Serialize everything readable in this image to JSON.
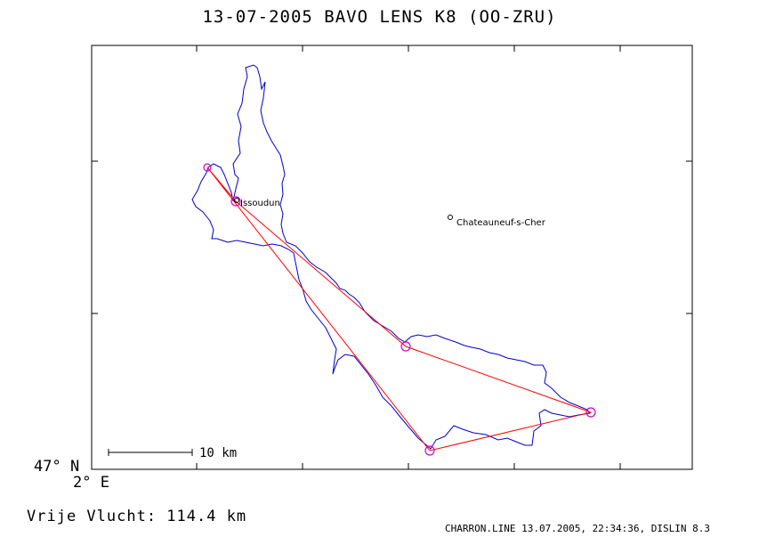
{
  "title": "13-07-2005   BAVO LENS   K8 (OO-ZRU)",
  "map": {
    "lat_label": "47° N",
    "lon_label": "2° E",
    "scale_label": "10 km",
    "places": [
      {
        "name": "Issoudun"
      },
      {
        "name": "Chateauneuf-s-Cher"
      }
    ],
    "colors": {
      "track": "#0000cc",
      "task": "#ff0000",
      "turnpoint": "#cc00cc",
      "frame": "#000000"
    }
  },
  "distance_text": "Vrije Vlucht:  114.4 km",
  "footer_text": "CHARRON.LINE 13.07.2005, 22:34:36, DISLIN 8.3"
}
